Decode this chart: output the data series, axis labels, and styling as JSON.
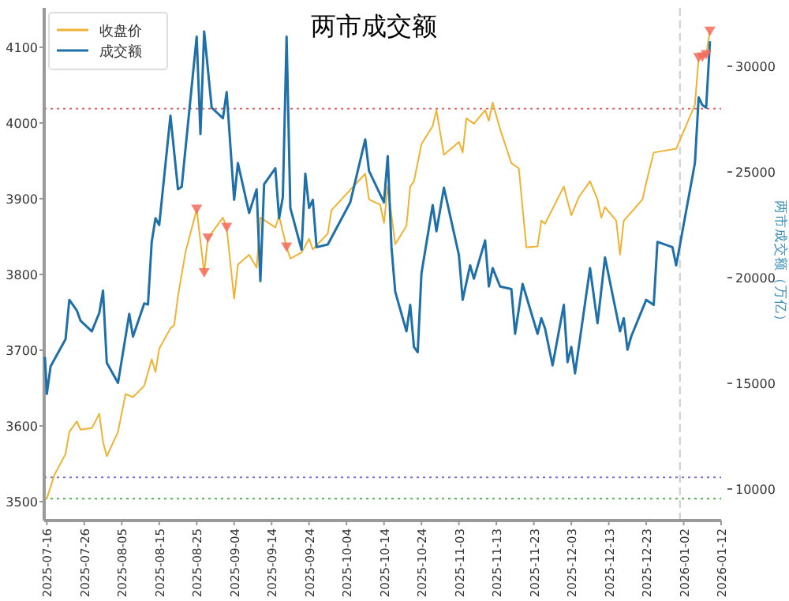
{
  "chart_data": {
    "type": "line",
    "title": "两市成交额",
    "y2label": "两市成交额（万亿）",
    "xlim": [
      "2025-07-15T07:00",
      "2026-01-12"
    ],
    "xticks": [
      "2025-07-16",
      "2025-07-26",
      "2025-08-05",
      "2025-08-15",
      "2025-08-25",
      "2025-09-04",
      "2025-09-14",
      "2025-09-24",
      "2025-10-04",
      "2025-10-14",
      "2025-10-24",
      "2025-11-03",
      "2025-11-13",
      "2025-11-23",
      "2025-12-03",
      "2025-12-13",
      "2025-12-23",
      "2026-01-02",
      "2026-01-12"
    ],
    "ylim": [
      3475,
      4152
    ],
    "yticks": [
      3500,
      3600,
      3700,
      3800,
      3900,
      4000,
      4100
    ],
    "y2lim": [
      8507,
      32761
    ],
    "y2ticks": [
      10000,
      15000,
      20000,
      25000,
      30000
    ],
    "legend": "top left",
    "grid": false,
    "line_style": "solid",
    "series": [
      {
        "name": "收盘价",
        "type": "line",
        "color": "#f0b232",
        "x": [
          "2025-07-16",
          "2025-07-18",
          "2025-07-21",
          "2025-07-22",
          "2025-07-24",
          "2025-07-25",
          "2025-07-28",
          "2025-07-30",
          "2025-07-31",
          "2025-08-01",
          "2025-08-04",
          "2025-08-06",
          "2025-08-08",
          "2025-08-11",
          "2025-08-13",
          "2025-08-14",
          "2025-08-15",
          "2025-08-18",
          "2025-08-19",
          "2025-08-20",
          "2025-08-22",
          "2025-08-25",
          "2025-08-27",
          "2025-08-28",
          "2025-09-01",
          "2025-09-02",
          "2025-09-04",
          "2025-09-05",
          "2025-09-08",
          "2025-09-10",
          "2025-09-11",
          "2025-09-15",
          "2025-09-16",
          "2025-09-18",
          "2025-09-19",
          "2025-09-22",
          "2025-09-24",
          "2025-09-25",
          "2025-09-29",
          "2025-09-30",
          "2025-10-09",
          "2025-10-10",
          "2025-10-13",
          "2025-10-14",
          "2025-10-15",
          "2025-10-17",
          "2025-10-20",
          "2025-10-21",
          "2025-10-22",
          "2025-10-24",
          "2025-10-27",
          "2025-10-28",
          "2025-10-30",
          "2025-11-03",
          "2025-11-04",
          "2025-11-05",
          "2025-11-07",
          "2025-11-10",
          "2025-11-11",
          "2025-11-12",
          "2025-11-14",
          "2025-11-17",
          "2025-11-19",
          "2025-11-21",
          "2025-11-24",
          "2025-11-25",
          "2025-11-26",
          "2025-12-01",
          "2025-12-03",
          "2025-12-05",
          "2025-12-08",
          "2025-12-10",
          "2025-12-11",
          "2025-12-12",
          "2025-12-15",
          "2025-12-16",
          "2025-12-17",
          "2025-12-22",
          "2025-12-23",
          "2025-12-25",
          "2025-12-31",
          "2026-01-05",
          "2026-01-06",
          "2026-01-07",
          "2026-01-08",
          "2026-01-09"
        ],
        "values": [
          3504,
          3535,
          3563,
          3592,
          3606,
          3595,
          3597,
          3616,
          3579,
          3560,
          3592,
          3642,
          3638,
          3653,
          3688,
          3671,
          3702,
          3729,
          3733,
          3771,
          3829,
          3886,
          3802,
          3848,
          3875,
          3862,
          3768,
          3813,
          3826,
          3809,
          3875,
          3862,
          3877,
          3836,
          3821,
          3829,
          3847,
          3833,
          3854,
          3885,
          3933,
          3899,
          3892,
          3868,
          3916,
          3840,
          3864,
          3916,
          3923,
          3972,
          3996,
          4017,
          3958,
          3975,
          3961,
          4006,
          3999,
          4017,
          4003,
          4027,
          3992,
          3947,
          3940,
          3836,
          3837,
          3871,
          3867,
          3916,
          3878,
          3902,
          3923,
          3899,
          3875,
          3889,
          3871,
          3826,
          3871,
          3899,
          3921,
          3961,
          3966,
          4024,
          4086,
          4087,
          4090,
          4121
        ]
      },
      {
        "name": "成交额",
        "type": "line",
        "axis": "y2",
        "color": "#1f6fa8",
        "x": [
          "2025-07-15T12:00",
          "2025-07-16",
          "2025-07-17",
          "2025-07-21",
          "2025-07-22",
          "2025-07-24",
          "2025-07-25",
          "2025-07-28",
          "2025-07-30",
          "2025-07-31",
          "2025-08-01",
          "2025-08-04",
          "2025-08-07",
          "2025-08-08",
          "2025-08-11",
          "2025-08-12",
          "2025-08-13",
          "2025-08-14",
          "2025-08-15",
          "2025-08-18",
          "2025-08-20",
          "2025-08-21",
          "2025-08-25",
          "2025-08-26",
          "2025-08-27",
          "2025-08-29",
          "2025-09-01",
          "2025-09-02",
          "2025-09-04",
          "2025-09-05",
          "2025-09-08",
          "2025-09-10",
          "2025-09-11",
          "2025-09-12",
          "2025-09-15",
          "2025-09-16",
          "2025-09-17",
          "2025-09-18",
          "2025-09-19",
          "2025-09-22",
          "2025-09-23",
          "2025-09-24",
          "2025-09-25",
          "2025-09-26",
          "2025-09-29",
          "2025-10-05",
          "2025-10-09",
          "2025-10-10",
          "2025-10-14",
          "2025-10-15",
          "2025-10-16",
          "2025-10-17",
          "2025-10-20",
          "2025-10-21",
          "2025-10-22",
          "2025-10-23",
          "2025-10-24",
          "2025-10-27",
          "2025-10-28",
          "2025-10-30",
          "2025-11-03",
          "2025-11-04",
          "2025-11-06",
          "2025-11-07",
          "2025-11-10",
          "2025-11-11",
          "2025-11-12",
          "2025-11-14",
          "2025-11-17",
          "2025-11-18",
          "2025-11-20",
          "2025-11-24",
          "2025-11-25",
          "2025-11-26",
          "2025-11-28",
          "2025-12-01",
          "2025-12-02",
          "2025-12-03",
          "2025-12-04",
          "2025-12-08",
          "2025-12-10",
          "2025-12-12",
          "2025-12-16",
          "2025-12-17",
          "2025-12-18",
          "2025-12-19",
          "2025-12-23",
          "2025-12-25",
          "2025-12-26",
          "2025-12-30",
          "2025-12-31",
          "2026-01-05",
          "2026-01-06",
          "2026-01-07",
          "2026-01-08",
          "2026-01-09"
        ],
        "values": [
          16200,
          14500,
          15800,
          17090,
          18950,
          18450,
          17960,
          17460,
          18330,
          19380,
          15970,
          15020,
          18280,
          17210,
          18780,
          18730,
          21690,
          22810,
          22490,
          27660,
          24180,
          24300,
          31400,
          26790,
          31640,
          28040,
          27540,
          28780,
          23680,
          25420,
          23060,
          24180,
          19830,
          24420,
          25170,
          22810,
          23810,
          31400,
          23300,
          21320,
          24920,
          23300,
          23680,
          21440,
          21570,
          23560,
          26540,
          25050,
          23560,
          25750,
          21440,
          19330,
          17460,
          18710,
          16720,
          16470,
          20200,
          23430,
          22190,
          24250,
          21070,
          18950,
          20580,
          19950,
          21760,
          19580,
          20450,
          19580,
          19460,
          17340,
          19700,
          17340,
          18080,
          17590,
          15850,
          18710,
          16000,
          16720,
          15470,
          20450,
          17840,
          20950,
          17460,
          18080,
          16590,
          17220,
          18950,
          18710,
          21690,
          21440,
          20580,
          25420,
          28530,
          28160,
          28040,
          31140
        ]
      },
      {
        "type": "scatter",
        "marker": "triangle",
        "color": "#f26b5b",
        "x": [
          "2025-08-25",
          "2025-08-27",
          "2025-08-28",
          "2025-09-02",
          "2025-09-18",
          "2026-01-06",
          "2026-01-07",
          "2026-01-08",
          "2026-01-09"
        ],
        "values": [
          3886,
          3802,
          3848,
          3862,
          3836,
          4086,
          4087,
          4090,
          4121
        ]
      }
    ],
    "ref_lines": [
      {
        "axis": "y",
        "value": 4019,
        "color": "#e06666",
        "line_style": "dotted"
      },
      {
        "axis": "y",
        "value": 3532,
        "color": "#7a6fe0",
        "line_style": "dotted"
      },
      {
        "axis": "y",
        "value": 3504,
        "color": "#4caf50",
        "line_style": "dotted"
      },
      {
        "axis": "x",
        "value": "2026-01-01",
        "color": "#cccccc",
        "line_style": "dashed"
      }
    ]
  }
}
